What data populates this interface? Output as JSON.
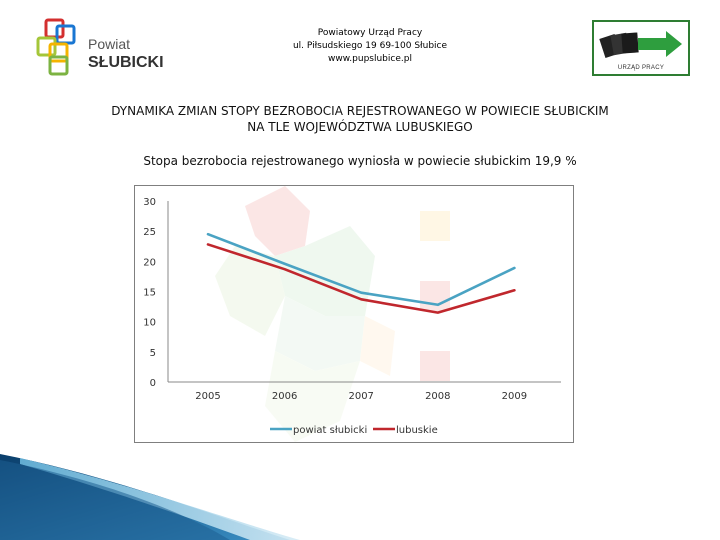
{
  "header": {
    "logo_line1": "Powiat",
    "logo_line2": "SŁUBICKI",
    "office_name": "Powiatowy Urząd Pracy",
    "address": "ul. Piłsudskiego 19 69-100 Słubice",
    "website": "www.pupslubice.pl",
    "right_logo_caption": "URZĄD PRACY"
  },
  "slide": {
    "title_line1": "DYNAMIKA ZMIAN STOPY BEZROBOCIA REJESTROWANEGO W POWIECIE SŁUBICKIM",
    "title_line2": "NA TLE WOJEWÓDZTWA LUBUSKIEGO",
    "subtitle": "Stopa bezrobocia rejestrowanego wyniosła w powiecie słubickim 19,9 %"
  },
  "colors": {
    "powiat": "#4aa3c3",
    "lubuskie": "#c0272d"
  },
  "chart_data": {
    "type": "line",
    "x": [
      "2005",
      "2006",
      "2007",
      "2008",
      "2009"
    ],
    "series": [
      {
        "name": "powiat słubicki",
        "values": [
          24.5,
          19.6,
          14.8,
          12.8,
          18.9
        ],
        "color": "#4aa3c3"
      },
      {
        "name": "lubuskie",
        "values": [
          22.8,
          18.7,
          13.7,
          11.5,
          15.2
        ],
        "color": "#c0272d"
      }
    ],
    "ylim": [
      0,
      30
    ],
    "yticks": [
      "30",
      "25",
      "20",
      "15",
      "10",
      "5",
      "0"
    ],
    "legend": "bottom",
    "grid": false
  }
}
